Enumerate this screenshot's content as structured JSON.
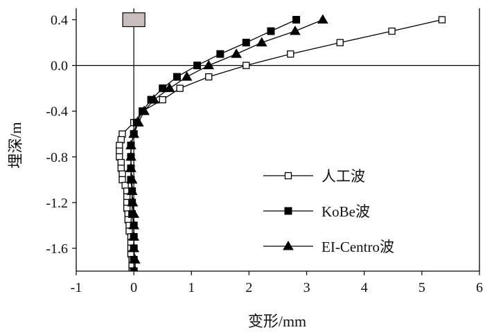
{
  "chart_data": {
    "type": "line",
    "xlabel": "变形/mm",
    "ylabel": "埋深/m",
    "xlim": [
      -1,
      6
    ],
    "ylim": [
      -1.8,
      0.5
    ],
    "xticks": [
      -1,
      0,
      1,
      2,
      3,
      4,
      5,
      6
    ],
    "yticks": [
      0.4,
      0.0,
      -0.4,
      -0.8,
      -1.2,
      -1.6
    ],
    "ytick_labels": [
      "0.4",
      "0.0",
      "-0.4",
      "-0.8",
      "-1.2",
      "-1.6"
    ],
    "reference_lines": {
      "horizontal_at_y": 0.0,
      "vertical_at_x": 0.0
    },
    "grid": false,
    "legend_position": "center-right",
    "annotation": {
      "type": "rectangle-marker",
      "x": 0.0,
      "y": 0.4,
      "color": "#c8bebe"
    },
    "series": [
      {
        "name": "人工波",
        "marker": "open-square",
        "points": [
          [
            5.35,
            0.4
          ],
          [
            4.48,
            0.3
          ],
          [
            3.58,
            0.2
          ],
          [
            2.72,
            0.1
          ],
          [
            1.95,
            0.0
          ],
          [
            1.3,
            -0.1
          ],
          [
            0.8,
            -0.2
          ],
          [
            0.5,
            -0.3
          ],
          [
            0.15,
            -0.4
          ],
          [
            0.0,
            -0.5
          ],
          [
            -0.2,
            -0.6
          ],
          [
            -0.22,
            -0.65
          ],
          [
            -0.25,
            -0.7
          ],
          [
            -0.25,
            -0.75
          ],
          [
            -0.25,
            -0.8
          ],
          [
            -0.22,
            -0.85
          ],
          [
            -0.22,
            -0.9
          ],
          [
            -0.2,
            -0.95
          ],
          [
            -0.2,
            -1.0
          ],
          [
            -0.15,
            -1.05
          ],
          [
            -0.12,
            -1.1
          ],
          [
            -0.12,
            -1.15
          ],
          [
            -0.12,
            -1.2
          ],
          [
            -0.12,
            -1.25
          ],
          [
            -0.1,
            -1.3
          ],
          [
            -0.1,
            -1.35
          ],
          [
            -0.08,
            -1.4
          ],
          [
            -0.08,
            -1.45
          ],
          [
            -0.05,
            -1.5
          ],
          [
            -0.05,
            -1.55
          ],
          [
            -0.05,
            -1.6
          ],
          [
            -0.05,
            -1.65
          ],
          [
            -0.03,
            -1.7
          ],
          [
            -0.03,
            -1.75
          ],
          [
            -0.03,
            -1.8
          ]
        ]
      },
      {
        "name": "KoBe波",
        "marker": "filled-square",
        "points": [
          [
            2.82,
            0.4
          ],
          [
            2.38,
            0.3
          ],
          [
            1.95,
            0.2
          ],
          [
            1.5,
            0.1
          ],
          [
            1.1,
            0.0
          ],
          [
            0.75,
            -0.1
          ],
          [
            0.5,
            -0.2
          ],
          [
            0.3,
            -0.3
          ],
          [
            0.15,
            -0.4
          ],
          [
            0.05,
            -0.5
          ],
          [
            0.0,
            -0.6
          ],
          [
            -0.05,
            -0.7
          ],
          [
            -0.05,
            -0.8
          ],
          [
            -0.05,
            -0.9
          ],
          [
            -0.05,
            -1.0
          ],
          [
            -0.03,
            -1.1
          ],
          [
            -0.03,
            -1.2
          ],
          [
            -0.03,
            -1.3
          ],
          [
            0.0,
            -1.4
          ],
          [
            0.0,
            -1.5
          ],
          [
            0.0,
            -1.6
          ],
          [
            0.0,
            -1.7
          ],
          [
            0.0,
            -1.8
          ]
        ]
      },
      {
        "name": "EI-Centro波",
        "marker": "filled-triangle",
        "points": [
          [
            3.28,
            0.4
          ],
          [
            2.8,
            0.3
          ],
          [
            2.22,
            0.2
          ],
          [
            1.78,
            0.1
          ],
          [
            1.3,
            0.0
          ],
          [
            0.92,
            -0.1
          ],
          [
            0.62,
            -0.2
          ],
          [
            0.35,
            -0.3
          ],
          [
            0.18,
            -0.4
          ],
          [
            0.08,
            -0.5
          ],
          [
            0.0,
            -0.6
          ],
          [
            -0.05,
            -0.7
          ],
          [
            -0.05,
            -0.8
          ],
          [
            -0.05,
            -0.9
          ],
          [
            -0.03,
            -1.0
          ],
          [
            -0.03,
            -1.1
          ],
          [
            -0.02,
            -1.2
          ],
          [
            0.0,
            -1.3
          ],
          [
            0.0,
            -1.4
          ],
          [
            0.0,
            -1.5
          ],
          [
            0.0,
            -1.6
          ],
          [
            0.02,
            -1.7
          ],
          [
            0.02,
            -1.8
          ]
        ]
      }
    ]
  }
}
